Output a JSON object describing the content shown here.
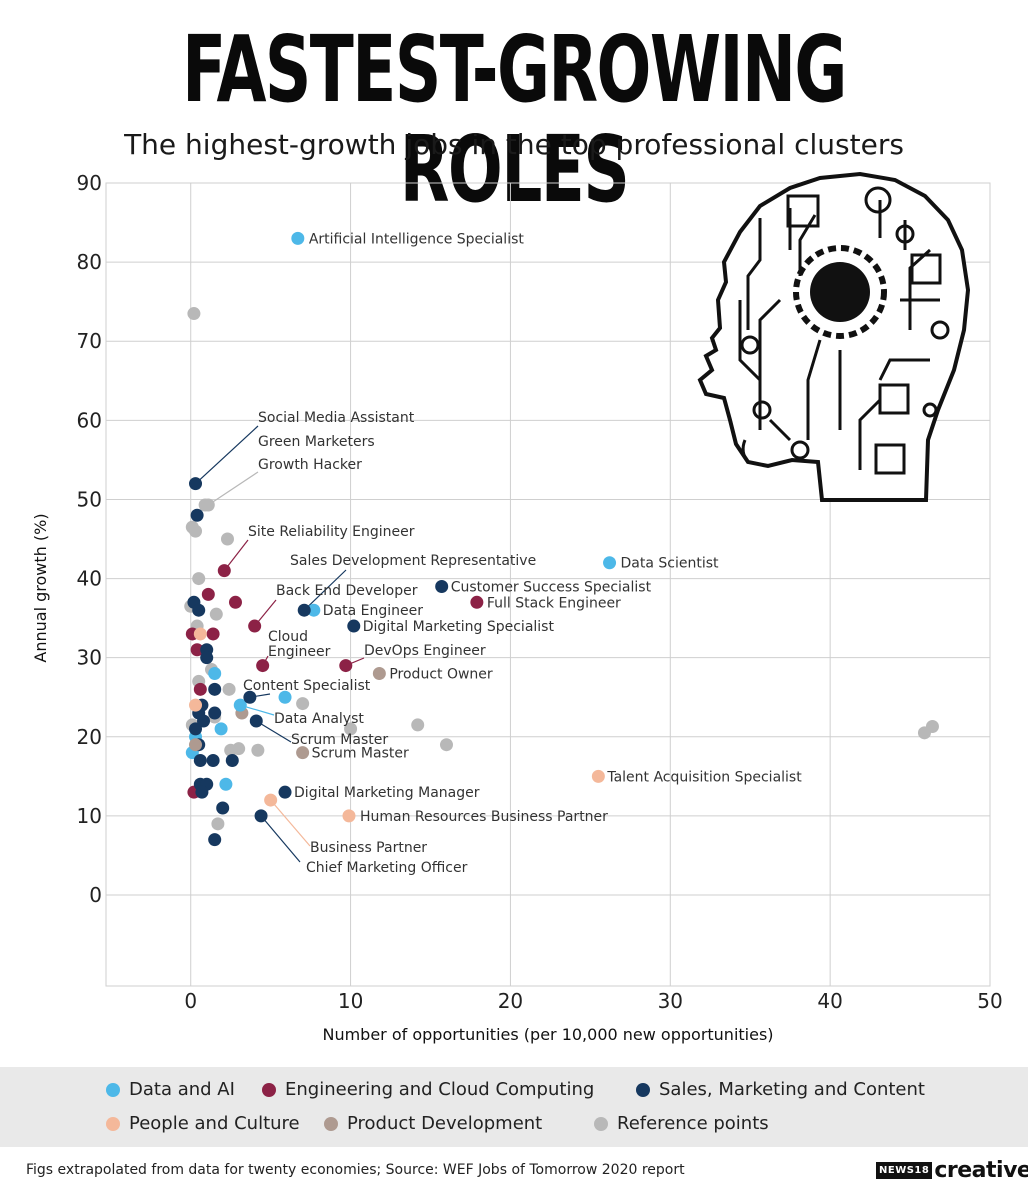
{
  "header": {
    "title": "FASTEST-GROWING ROLES",
    "subtitle": "The highest-growth jobs in the top professional clusters"
  },
  "icon": "ai-circuit-head-icon",
  "colors": {
    "data_ai": "#4db8e8",
    "engineering": "#8c2246",
    "sales": "#16385f",
    "people": "#f4b89a",
    "product": "#ae9a90",
    "reference": "#b8b8b8"
  },
  "chart_data": {
    "type": "scatter",
    "title": "FASTEST-GROWING ROLES",
    "subtitle": "The highest-growth jobs in the top professional clusters",
    "xlabel": "Number of opportunities (per 10,000 new opportunities)",
    "ylabel": "Annual growth (%)",
    "xlim": [
      -5.3,
      50
    ],
    "ylim": [
      -11.5,
      90
    ],
    "xticks": [
      0,
      10,
      20,
      30,
      40,
      50
    ],
    "yticks": [
      0,
      10,
      20,
      30,
      40,
      50,
      60,
      70,
      80,
      90
    ],
    "grid": true,
    "legend_position": "bottom",
    "categories": [
      {
        "key": "data_ai",
        "name": "Data and AI",
        "color": "#4db8e8"
      },
      {
        "key": "engineering",
        "name": "Engineering and Cloud Computing",
        "color": "#8c2246"
      },
      {
        "key": "sales",
        "name": "Sales, Marketing and Content",
        "color": "#16385f"
      },
      {
        "key": "people",
        "name": "People and Culture",
        "color": "#f4b89a"
      },
      {
        "key": "product",
        "name": "Product Development",
        "color": "#ae9a90"
      },
      {
        "key": "reference",
        "name": "Reference points",
        "color": "#b8b8b8"
      }
    ],
    "labeled_points": [
      {
        "label": "Artificial Intelligence Specialist",
        "category": "data_ai",
        "x": 6.7,
        "y": 83
      },
      {
        "label": "Data Scientist",
        "category": "data_ai",
        "x": 26.2,
        "y": 42
      },
      {
        "label": "Data Engineer",
        "category": "data_ai",
        "x": 7.7,
        "y": 36
      },
      {
        "label": "Data Analyst",
        "category": "data_ai",
        "x": 3.1,
        "y": 24
      },
      {
        "label": "Social Media Assistant",
        "category": "sales",
        "x": 0.3,
        "y": 52
      },
      {
        "label": "Green Marketers",
        "category": "sales",
        "x": 0.4,
        "y": 48
      },
      {
        "label": "Growth Hacker",
        "category": "reference",
        "x": 1.1,
        "y": 49.3
      },
      {
        "label": "Site Reliability Engineer",
        "category": "engineering",
        "x": 2.1,
        "y": 41
      },
      {
        "label": "Sales Development Representative",
        "category": "sales",
        "x": 7.1,
        "y": 36
      },
      {
        "label": "Back End Developer",
        "category": "engineering",
        "x": 4.0,
        "y": 34
      },
      {
        "label": "Customer Success Specialist",
        "category": "sales",
        "x": 15.7,
        "y": 39
      },
      {
        "label": "Full Stack Engineer",
        "category": "engineering",
        "x": 17.9,
        "y": 37
      },
      {
        "label": "Digital Marketing Specialist",
        "category": "sales",
        "x": 10.2,
        "y": 34
      },
      {
        "label": "Cloud Engineer",
        "category": "engineering",
        "x": 4.5,
        "y": 29
      },
      {
        "label": "DevOps Engineer",
        "category": "engineering",
        "x": 9.7,
        "y": 29
      },
      {
        "label": "Product Owner",
        "category": "product",
        "x": 11.8,
        "y": 28
      },
      {
        "label": "Content Specialist",
        "category": "sales",
        "x": 3.7,
        "y": 25
      },
      {
        "label": "Scrum Master",
        "category": "sales",
        "x": 4.1,
        "y": 22
      },
      {
        "label": "Scrum Master",
        "category": "product",
        "x": 7.0,
        "y": 18
      },
      {
        "label": "Talent Acquisition Specialist",
        "category": "people",
        "x": 25.5,
        "y": 15
      },
      {
        "label": "Digital Marketing Manager",
        "category": "sales",
        "x": 5.9,
        "y": 13
      },
      {
        "label": "Human Resources Business Partner",
        "category": "people",
        "x": 9.9,
        "y": 10
      },
      {
        "label": "Business Partner",
        "category": "people",
        "x": 5.0,
        "y": 12
      },
      {
        "label": "Chief Marketing Officer",
        "category": "sales",
        "x": 4.4,
        "y": 10
      }
    ],
    "unlabeled_points": [
      {
        "category": "reference",
        "x": 0.2,
        "y": 73.5
      },
      {
        "category": "reference",
        "x": 0.9,
        "y": 49.3
      },
      {
        "category": "reference",
        "x": 0.1,
        "y": 46.5
      },
      {
        "category": "reference",
        "x": 0.3,
        "y": 46
      },
      {
        "category": "reference",
        "x": 2.3,
        "y": 45
      },
      {
        "category": "reference",
        "x": 0.5,
        "y": 40
      },
      {
        "category": "reference",
        "x": 1.6,
        "y": 35.5
      },
      {
        "category": "reference",
        "x": 0.0,
        "y": 36.5
      },
      {
        "category": "reference",
        "x": 0.4,
        "y": 34
      },
      {
        "category": "reference",
        "x": 0.5,
        "y": 27
      },
      {
        "category": "reference",
        "x": 2.4,
        "y": 26
      },
      {
        "category": "reference",
        "x": 1.3,
        "y": 28.5
      },
      {
        "category": "reference",
        "x": 7.0,
        "y": 24.2
      },
      {
        "category": "reference",
        "x": 1.5,
        "y": 22.5
      },
      {
        "category": "reference",
        "x": 2.5,
        "y": 18.3
      },
      {
        "category": "reference",
        "x": 3.0,
        "y": 18.5
      },
      {
        "category": "reference",
        "x": 4.2,
        "y": 18.3
      },
      {
        "category": "reference",
        "x": 0.1,
        "y": 21.5
      },
      {
        "category": "reference",
        "x": 10.0,
        "y": 21
      },
      {
        "category": "reference",
        "x": 14.2,
        "y": 21.5
      },
      {
        "category": "reference",
        "x": 16.0,
        "y": 19
      },
      {
        "category": "reference",
        "x": 45.9,
        "y": 20.5
      },
      {
        "category": "reference",
        "x": 46.4,
        "y": 21.3
      },
      {
        "category": "reference",
        "x": 1.7,
        "y": 9
      },
      {
        "category": "data_ai",
        "x": 1.5,
        "y": 28
      },
      {
        "category": "data_ai",
        "x": 0.3,
        "y": 20
      },
      {
        "category": "data_ai",
        "x": 1.9,
        "y": 21
      },
      {
        "category": "data_ai",
        "x": 2.2,
        "y": 14
      },
      {
        "category": "data_ai",
        "x": 0.1,
        "y": 18
      },
      {
        "category": "data_ai",
        "x": 5.9,
        "y": 25
      },
      {
        "category": "engineering",
        "x": 1.1,
        "y": 38
      },
      {
        "category": "engineering",
        "x": 2.8,
        "y": 37
      },
      {
        "category": "engineering",
        "x": 0.1,
        "y": 33
      },
      {
        "category": "engineering",
        "x": 1.4,
        "y": 33
      },
      {
        "category": "engineering",
        "x": 0.4,
        "y": 31
      },
      {
        "category": "engineering",
        "x": 0.6,
        "y": 26
      },
      {
        "category": "engineering",
        "x": 0.2,
        "y": 13
      },
      {
        "category": "sales",
        "x": 0.2,
        "y": 37
      },
      {
        "category": "sales",
        "x": 0.5,
        "y": 36
      },
      {
        "category": "sales",
        "x": 1.0,
        "y": 31
      },
      {
        "category": "sales",
        "x": 1.0,
        "y": 30
      },
      {
        "category": "sales",
        "x": 1.5,
        "y": 26
      },
      {
        "category": "sales",
        "x": 0.7,
        "y": 24
      },
      {
        "category": "sales",
        "x": 0.5,
        "y": 23
      },
      {
        "category": "sales",
        "x": 1.5,
        "y": 23
      },
      {
        "category": "sales",
        "x": 0.8,
        "y": 22
      },
      {
        "category": "sales",
        "x": 0.3,
        "y": 21
      },
      {
        "category": "sales",
        "x": 0.5,
        "y": 19
      },
      {
        "category": "sales",
        "x": 0.6,
        "y": 17
      },
      {
        "category": "sales",
        "x": 1.4,
        "y": 17
      },
      {
        "category": "sales",
        "x": 2.6,
        "y": 17
      },
      {
        "category": "sales",
        "x": 0.6,
        "y": 14
      },
      {
        "category": "sales",
        "x": 1.0,
        "y": 14
      },
      {
        "category": "sales",
        "x": 0.7,
        "y": 13
      },
      {
        "category": "sales",
        "x": 2.0,
        "y": 11
      },
      {
        "category": "sales",
        "x": 1.5,
        "y": 7
      },
      {
        "category": "people",
        "x": 0.6,
        "y": 33
      },
      {
        "category": "people",
        "x": 0.3,
        "y": 24
      },
      {
        "category": "product",
        "x": 3.2,
        "y": 23
      },
      {
        "category": "product",
        "x": 0.3,
        "y": 19
      }
    ]
  },
  "legend": {
    "items": [
      {
        "label": "Data and AI",
        "color": "#4db8e8"
      },
      {
        "label": "Engineering and Cloud Computing",
        "color": "#8c2246"
      },
      {
        "label": "Sales, Marketing and Content",
        "color": "#16385f"
      },
      {
        "label": "People and Culture",
        "color": "#f4b89a"
      },
      {
        "label": "Product Development",
        "color": "#ae9a90"
      },
      {
        "label": "Reference points",
        "color": "#b8b8b8"
      }
    ]
  },
  "footer": {
    "note": "Figs extrapolated from data for twenty economies;   Source: WEF Jobs of Tomorrow 2020 report",
    "brand_prefix": "NEWS18",
    "brand_name": "creative"
  }
}
